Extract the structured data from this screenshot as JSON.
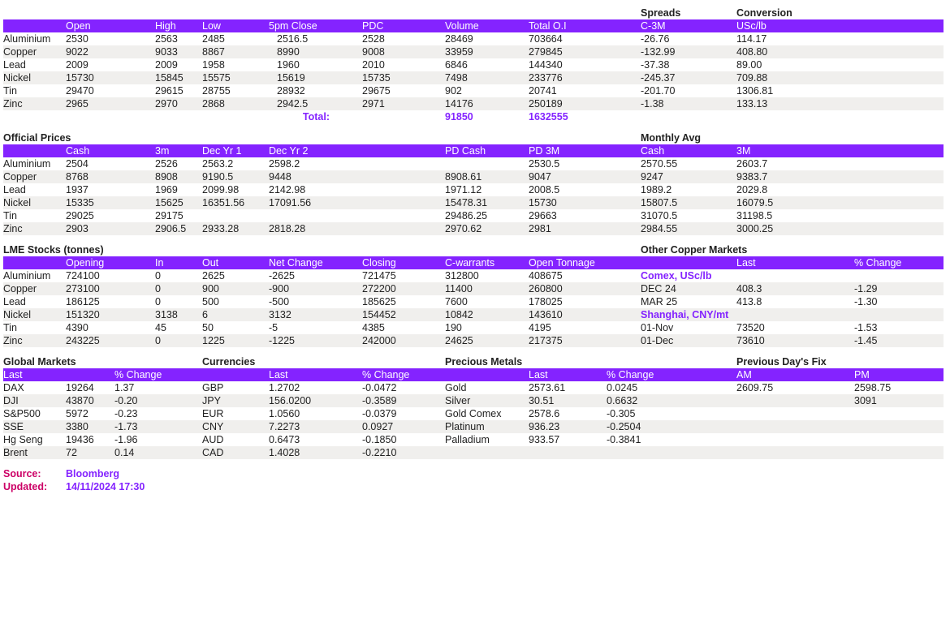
{
  "colors": {
    "header_bg": "#8423ff",
    "header_fg": "#ffffff",
    "zebra": "#f0efed",
    "accent": "#8423ff",
    "source_label": "#cc0066"
  },
  "section1": {
    "extra_headers": {
      "spreads": "Spreads",
      "conversion": "Conversion"
    },
    "headers": [
      "",
      "Open",
      "High",
      "Low",
      "5pm Close",
      "PDC",
      "Volume",
      "Total O.I",
      "C-3M",
      "USc/lb"
    ],
    "rows": [
      [
        "Aluminium",
        "2530",
        "2563",
        "2485",
        "2516.5",
        "2528",
        "28469",
        "703664",
        "-26.76",
        "114.17"
      ],
      [
        "Copper",
        "9022",
        "9033",
        "8867",
        "8990",
        "9008",
        "33959",
        "279845",
        "-132.99",
        "408.80"
      ],
      [
        "Lead",
        "2009",
        "2009",
        "1958",
        "1960",
        "2010",
        "6846",
        "144340",
        "-37.38",
        "89.00"
      ],
      [
        "Nickel",
        "15730",
        "15845",
        "15575",
        "15619",
        "15735",
        "7498",
        "233776",
        "-245.37",
        "709.88"
      ],
      [
        "Tin",
        "29470",
        "29615",
        "28755",
        "28932",
        "29675",
        "902",
        "20741",
        "-201.70",
        "1306.81"
      ],
      [
        "Zinc",
        "2965",
        "2970",
        "2868",
        "2942.5",
        "2971",
        "14176",
        "250189",
        "-1.38",
        "133.13"
      ]
    ],
    "total_label": "Total:",
    "total_volume": "91850",
    "total_oi": "1632555"
  },
  "section2": {
    "left_title": "Official Prices",
    "right_title": "Monthly Avg",
    "headers": [
      "",
      "Cash",
      "3m",
      "Dec Yr 1",
      "Dec Yr 2",
      "",
      "PD Cash",
      "PD 3M",
      "Cash",
      "3M"
    ],
    "rows": [
      [
        "Aluminium",
        "2504",
        "2526",
        "2563.2",
        "2598.2",
        "",
        "",
        "2530.5",
        "2570.55",
        "2603.7"
      ],
      [
        "Copper",
        "8768",
        "8908",
        "9190.5",
        "9448",
        "",
        "8908.61",
        "9047",
        "9247",
        "9383.7"
      ],
      [
        "Lead",
        "1937",
        "1969",
        "2099.98",
        "2142.98",
        "",
        "1971.12",
        "2008.5",
        "1989.2",
        "2029.8"
      ],
      [
        "Nickel",
        "15335",
        "15625",
        "16351.56",
        "17091.56",
        "",
        "15478.31",
        "15730",
        "15807.5",
        "16079.5"
      ],
      [
        "Tin",
        "29025",
        "29175",
        "",
        "",
        "",
        "29486.25",
        "29663",
        "31070.5",
        "31198.5"
      ],
      [
        "Zinc",
        "2903",
        "2906.5",
        "2933.28",
        "2818.28",
        "",
        "2970.62",
        "2981",
        "2984.55",
        "3000.25"
      ]
    ]
  },
  "section3": {
    "left_title": "LME Stocks (tonnes)",
    "right_title": "Other Copper Markets",
    "headers_left": [
      "",
      "Opening",
      "In",
      "Out",
      "Net Change",
      "Closing",
      "C-warrants",
      "Open Tonnage"
    ],
    "headers_right": [
      "",
      "Last",
      "% Change"
    ],
    "rows_left": [
      [
        "Aluminium",
        "724100",
        "0",
        "2625",
        "-2625",
        "721475",
        "312800",
        "408675"
      ],
      [
        "Copper",
        "273100",
        "0",
        "900",
        "-900",
        "272200",
        "11400",
        "260800"
      ],
      [
        "Lead",
        "186125",
        "0",
        "500",
        "-500",
        "185625",
        "7600",
        "178025"
      ],
      [
        "Nickel",
        "151320",
        "3138",
        "6",
        "3132",
        "154452",
        "10842",
        "143610"
      ],
      [
        "Tin",
        "4390",
        "45",
        "50",
        "-5",
        "4385",
        "190",
        "4195"
      ],
      [
        "Zinc",
        "243225",
        "0",
        "1225",
        "-1225",
        "242000",
        "24625",
        "217375"
      ]
    ],
    "rows_right": [
      {
        "label": "Comex, USc/lb",
        "last": "",
        "chg": "",
        "sub": true
      },
      {
        "label": "DEC 24",
        "last": "408.3",
        "chg": "-1.29"
      },
      {
        "label": "MAR 25",
        "last": "413.8",
        "chg": "-1.30"
      },
      {
        "label": "Shanghai, CNY/mt",
        "last": "",
        "chg": "",
        "sub": true
      },
      {
        "label": "01-Nov",
        "last": "73520",
        "chg": "-1.53"
      },
      {
        "label": "01-Dec",
        "last": "73610",
        "chg": "-1.45"
      }
    ]
  },
  "section4": {
    "titles": {
      "gm": "Global Markets",
      "cur": "Currencies",
      "pm": "Precious Metals",
      "fix": "Previous Day's Fix"
    },
    "hdr": {
      "last": "Last",
      "chg": "% Change",
      "am": "AM",
      "pmfix": "PM"
    },
    "gm": [
      [
        "DAX",
        "19264",
        "1.37"
      ],
      [
        "DJI",
        "43870",
        "-0.20"
      ],
      [
        "S&P500",
        "5972",
        "-0.23"
      ],
      [
        "SSE",
        "3380",
        "-1.73"
      ],
      [
        "Hg Seng",
        "19436",
        "-1.96"
      ],
      [
        "Brent",
        "72",
        "0.14"
      ]
    ],
    "cur": [
      [
        "GBP",
        "1.2702",
        "-0.0472"
      ],
      [
        "JPY",
        "156.0200",
        "-0.3589"
      ],
      [
        "EUR",
        "1.0560",
        "-0.0379"
      ],
      [
        "CNY",
        "7.2273",
        "0.0927"
      ],
      [
        "AUD",
        "0.6473",
        "-0.1850"
      ],
      [
        "CAD",
        "1.4028",
        "-0.2210"
      ]
    ],
    "pm": [
      [
        "Gold",
        "2573.61",
        "0.0245"
      ],
      [
        "Silver",
        "30.51",
        "0.6632"
      ],
      [
        "Gold Comex",
        "2578.6",
        "-0.305"
      ],
      [
        "Platinum",
        "936.23",
        "-0.2504"
      ],
      [
        "Palladium",
        "933.57",
        "-0.3841"
      ]
    ],
    "fix": [
      [
        "2609.75",
        "2598.75"
      ],
      [
        "",
        "3091"
      ]
    ]
  },
  "footer": {
    "source_label": "Source:",
    "source_val": "Bloomberg",
    "updated_label": "Updated:",
    "updated_val": "14/11/2024 17:30"
  }
}
